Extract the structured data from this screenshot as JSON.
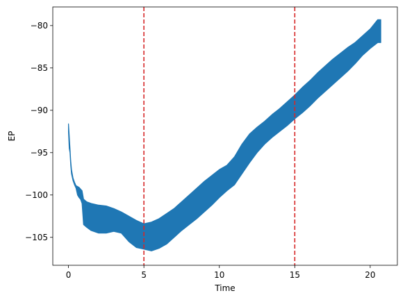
{
  "chart_data": {
    "type": "line",
    "title": "",
    "xlabel": "Time",
    "ylabel": "EP",
    "xlim": [
      -1.04,
      21.8
    ],
    "ylim": [
      -108.3,
      -77.8
    ],
    "xticks": [
      0,
      5,
      10,
      15,
      20
    ],
    "yticks": [
      -105,
      -100,
      -95,
      -90,
      -85,
      -80
    ],
    "grid": false,
    "legend": "none",
    "series": [
      {
        "color": "#1f77b4",
        "x": [
          0.0,
          0.05,
          0.1,
          0.15,
          0.2,
          0.3,
          0.4,
          0.5,
          0.6,
          0.7,
          0.8,
          0.9,
          1.0,
          1.2,
          1.5,
          2.0,
          2.5,
          3.0,
          3.5,
          4.0,
          4.5,
          5.0,
          5.5,
          6.0,
          6.5,
          7.0,
          7.5,
          8.0,
          8.5,
          9.0,
          9.5,
          10.0,
          10.5,
          11.0,
          11.5,
          12.0,
          12.5,
          13.0,
          13.5,
          14.0,
          14.5,
          15.0,
          15.5,
          16.0,
          16.5,
          17.0,
          17.5,
          18.0,
          18.5,
          19.0,
          19.5,
          20.0,
          20.5,
          20.7
        ],
        "upper": [
          -91.6,
          -93.0,
          -94.5,
          -96.0,
          -97.0,
          -98.0,
          -98.5,
          -98.9,
          -99.0,
          -99.1,
          -99.3,
          -99.5,
          -100.5,
          -100.8,
          -101.0,
          -101.2,
          -101.3,
          -101.6,
          -102.0,
          -102.5,
          -103.0,
          -103.4,
          -103.2,
          -102.8,
          -102.2,
          -101.6,
          -100.8,
          -100.0,
          -99.2,
          -98.4,
          -97.7,
          -97.0,
          -96.5,
          -95.5,
          -94.0,
          -92.8,
          -92.0,
          -91.3,
          -90.5,
          -89.8,
          -89.0,
          -88.2,
          -87.3,
          -86.5,
          -85.6,
          -84.8,
          -84.0,
          -83.3,
          -82.6,
          -82.0,
          -81.2,
          -80.4,
          -79.3,
          -79.3
        ],
        "lower": [
          -92.5,
          -94.5,
          -95.0,
          -96.5,
          -97.5,
          -98.3,
          -98.8,
          -99.2,
          -100.0,
          -100.3,
          -100.5,
          -101.0,
          -103.5,
          -103.8,
          -104.2,
          -104.5,
          -104.5,
          -104.3,
          -104.5,
          -105.5,
          -106.2,
          -106.4,
          -106.6,
          -106.3,
          -105.8,
          -105.0,
          -104.2,
          -103.5,
          -102.8,
          -102.0,
          -101.2,
          -100.3,
          -99.5,
          -98.8,
          -97.5,
          -96.2,
          -95.0,
          -94.0,
          -93.2,
          -92.5,
          -91.8,
          -91.0,
          -90.3,
          -89.5,
          -88.6,
          -87.8,
          -87.0,
          -86.2,
          -85.4,
          -84.5,
          -83.5,
          -82.7,
          -82.0,
          -82.0
        ]
      }
    ],
    "vlines": [
      {
        "x": 5,
        "color": "#d62728",
        "style": "dashed"
      },
      {
        "x": 15,
        "color": "#d62728",
        "style": "dashed"
      }
    ]
  }
}
